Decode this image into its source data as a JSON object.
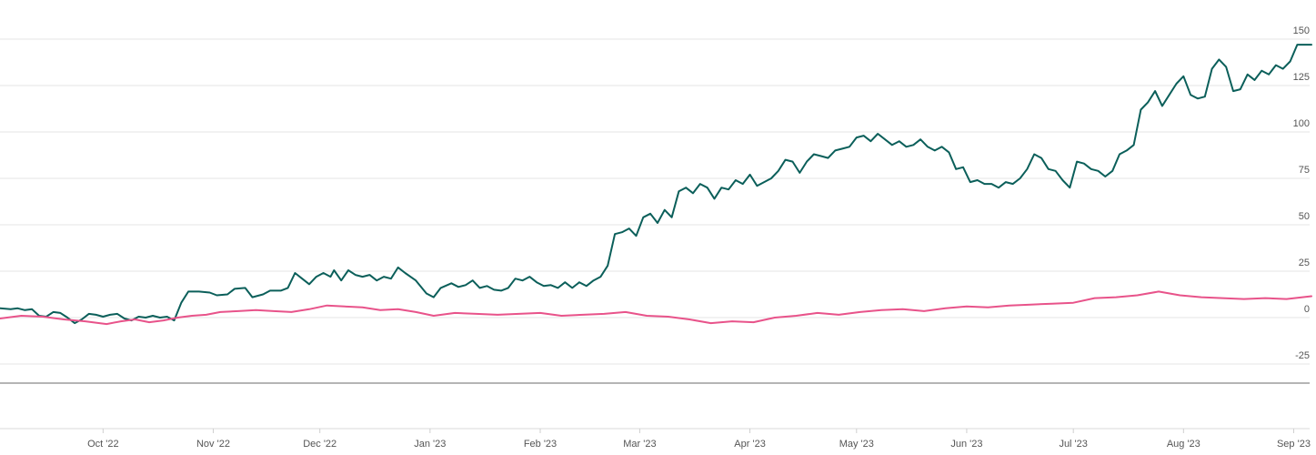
{
  "chart_data": {
    "type": "line",
    "title": "",
    "xlabel": "",
    "ylabel": "",
    "ylim": [
      -30,
      160
    ],
    "y_ticks": [
      -25,
      0,
      25,
      50,
      75,
      100,
      125,
      150
    ],
    "grid": true,
    "legend": "none",
    "x_ticks": [
      {
        "label": "Oct '22",
        "date": "2022-10-01"
      },
      {
        "label": "Nov '22",
        "date": "2022-11-01"
      },
      {
        "label": "Dec '22",
        "date": "2022-12-01"
      },
      {
        "label": "Jan '23",
        "date": "2023-01-01"
      },
      {
        "label": "Feb '23",
        "date": "2023-02-01"
      },
      {
        "label": "Mar '23",
        "date": "2023-03-01"
      },
      {
        "label": "Apr '23",
        "date": "2023-04-01"
      },
      {
        "label": "May '23",
        "date": "2023-05-01"
      },
      {
        "label": "Jun '23",
        "date": "2023-06-01"
      },
      {
        "label": "Jul '23",
        "date": "2023-07-01"
      },
      {
        "label": "Aug '23",
        "date": "2023-08-01"
      },
      {
        "label": "Sep '23",
        "date": "2023-09-01"
      }
    ],
    "xlim": [
      "2022-09-02",
      "2023-09-06"
    ],
    "series": [
      {
        "color": "#0b5f5a",
        "points": [
          [
            "2022-09-02",
            5
          ],
          [
            "2022-09-05",
            4.5
          ],
          [
            "2022-09-07",
            5
          ],
          [
            "2022-09-09",
            4
          ],
          [
            "2022-09-11",
            4.5
          ],
          [
            "2022-09-13",
            1
          ],
          [
            "2022-09-15",
            0.5
          ],
          [
            "2022-09-17",
            3
          ],
          [
            "2022-09-19",
            2.5
          ],
          [
            "2022-09-21",
            0
          ],
          [
            "2022-09-23",
            -3
          ],
          [
            "2022-09-25",
            -1
          ],
          [
            "2022-09-27",
            2
          ],
          [
            "2022-09-29",
            1.5
          ],
          [
            "2022-10-01",
            0.5
          ],
          [
            "2022-10-03",
            1.5
          ],
          [
            "2022-10-05",
            2
          ],
          [
            "2022-10-07",
            -0.5
          ],
          [
            "2022-10-09",
            -1.5
          ],
          [
            "2022-10-11",
            0.5
          ],
          [
            "2022-10-13",
            0
          ],
          [
            "2022-10-15",
            1
          ],
          [
            "2022-10-17",
            0
          ],
          [
            "2022-10-19",
            0.5
          ],
          [
            "2022-10-21",
            -1.5
          ],
          [
            "2022-10-23",
            8
          ],
          [
            "2022-10-25",
            14
          ],
          [
            "2022-10-28",
            14
          ],
          [
            "2022-10-31",
            13.5
          ],
          [
            "2022-11-02",
            12
          ],
          [
            "2022-11-05",
            12.5
          ],
          [
            "2022-11-07",
            15.5
          ],
          [
            "2022-11-10",
            16
          ],
          [
            "2022-11-12",
            11
          ],
          [
            "2022-11-15",
            12.5
          ],
          [
            "2022-11-17",
            14.5
          ],
          [
            "2022-11-20",
            14.5
          ],
          [
            "2022-11-22",
            16
          ],
          [
            "2022-11-24",
            24
          ],
          [
            "2022-11-26",
            21
          ],
          [
            "2022-11-28",
            18
          ],
          [
            "2022-11-30",
            22
          ],
          [
            "2022-12-02",
            24
          ],
          [
            "2022-12-04",
            22
          ],
          [
            "2022-12-05",
            25.5
          ],
          [
            "2022-12-07",
            20
          ],
          [
            "2022-12-09",
            25.5
          ],
          [
            "2022-12-11",
            23
          ],
          [
            "2022-12-13",
            22
          ],
          [
            "2022-12-15",
            23
          ],
          [
            "2022-12-17",
            20
          ],
          [
            "2022-12-19",
            22
          ],
          [
            "2022-12-21",
            21
          ],
          [
            "2022-12-23",
            27
          ],
          [
            "2022-12-25",
            24
          ],
          [
            "2022-12-28",
            20
          ],
          [
            "2022-12-31",
            13
          ],
          [
            "2023-01-02",
            11
          ],
          [
            "2023-01-04",
            16
          ],
          [
            "2023-01-07",
            18.5
          ],
          [
            "2023-01-09",
            16.5
          ],
          [
            "2023-01-11",
            17.5
          ],
          [
            "2023-01-13",
            20
          ],
          [
            "2023-01-15",
            16
          ],
          [
            "2023-01-17",
            17
          ],
          [
            "2023-01-19",
            15
          ],
          [
            "2023-01-21",
            14.5
          ],
          [
            "2023-01-23",
            16
          ],
          [
            "2023-01-25",
            21
          ],
          [
            "2023-01-27",
            20
          ],
          [
            "2023-01-29",
            22
          ],
          [
            "2023-01-31",
            19
          ],
          [
            "2023-02-02",
            17
          ],
          [
            "2023-02-04",
            17.5
          ],
          [
            "2023-02-06",
            16
          ],
          [
            "2023-02-08",
            19
          ],
          [
            "2023-02-10",
            16
          ],
          [
            "2023-02-12",
            19
          ],
          [
            "2023-02-14",
            17
          ],
          [
            "2023-02-16",
            20
          ],
          [
            "2023-02-18",
            22
          ],
          [
            "2023-02-20",
            28
          ],
          [
            "2023-02-22",
            45
          ],
          [
            "2023-02-24",
            46
          ],
          [
            "2023-02-26",
            48
          ],
          [
            "2023-02-28",
            44
          ],
          [
            "2023-03-02",
            54
          ],
          [
            "2023-03-04",
            56
          ],
          [
            "2023-03-06",
            51
          ],
          [
            "2023-03-08",
            58
          ],
          [
            "2023-03-10",
            54
          ],
          [
            "2023-03-12",
            68
          ],
          [
            "2023-03-14",
            70
          ],
          [
            "2023-03-16",
            67
          ],
          [
            "2023-03-18",
            72
          ],
          [
            "2023-03-20",
            70
          ],
          [
            "2023-03-22",
            64
          ],
          [
            "2023-03-24",
            70
          ],
          [
            "2023-03-26",
            69
          ],
          [
            "2023-03-28",
            74
          ],
          [
            "2023-03-30",
            72
          ],
          [
            "2023-04-01",
            77
          ],
          [
            "2023-04-03",
            71
          ],
          [
            "2023-04-05",
            73
          ],
          [
            "2023-04-07",
            75
          ],
          [
            "2023-04-09",
            79
          ],
          [
            "2023-04-11",
            85
          ],
          [
            "2023-04-13",
            84
          ],
          [
            "2023-04-15",
            78
          ],
          [
            "2023-04-17",
            84
          ],
          [
            "2023-04-19",
            88
          ],
          [
            "2023-04-21",
            87
          ],
          [
            "2023-04-23",
            86
          ],
          [
            "2023-04-25",
            90
          ],
          [
            "2023-04-27",
            91
          ],
          [
            "2023-04-29",
            92
          ],
          [
            "2023-05-01",
            97
          ],
          [
            "2023-05-03",
            98
          ],
          [
            "2023-05-05",
            95
          ],
          [
            "2023-05-07",
            99
          ],
          [
            "2023-05-09",
            96
          ],
          [
            "2023-05-11",
            93
          ],
          [
            "2023-05-13",
            95
          ],
          [
            "2023-05-15",
            92
          ],
          [
            "2023-05-17",
            93
          ],
          [
            "2023-05-19",
            96
          ],
          [
            "2023-05-21",
            92
          ],
          [
            "2023-05-23",
            90
          ],
          [
            "2023-05-25",
            92
          ],
          [
            "2023-05-27",
            89
          ],
          [
            "2023-05-29",
            80
          ],
          [
            "2023-05-31",
            81
          ],
          [
            "2023-06-02",
            73
          ],
          [
            "2023-06-04",
            74
          ],
          [
            "2023-06-06",
            72
          ],
          [
            "2023-06-08",
            72
          ],
          [
            "2023-06-10",
            70
          ],
          [
            "2023-06-12",
            73
          ],
          [
            "2023-06-14",
            72
          ],
          [
            "2023-06-16",
            75
          ],
          [
            "2023-06-18",
            80
          ],
          [
            "2023-06-20",
            88
          ],
          [
            "2023-06-22",
            86
          ],
          [
            "2023-06-24",
            80
          ],
          [
            "2023-06-26",
            79
          ],
          [
            "2023-06-28",
            74
          ],
          [
            "2023-06-30",
            70
          ],
          [
            "2023-07-02",
            84
          ],
          [
            "2023-07-04",
            83
          ],
          [
            "2023-07-06",
            80
          ],
          [
            "2023-07-08",
            79
          ],
          [
            "2023-07-10",
            76
          ],
          [
            "2023-07-12",
            79
          ],
          [
            "2023-07-14",
            88
          ],
          [
            "2023-07-16",
            90
          ],
          [
            "2023-07-18",
            93
          ],
          [
            "2023-07-20",
            112
          ],
          [
            "2023-07-22",
            116
          ],
          [
            "2023-07-24",
            122
          ],
          [
            "2023-07-26",
            114
          ],
          [
            "2023-07-28",
            120
          ],
          [
            "2023-07-30",
            126
          ],
          [
            "2023-08-01",
            130
          ],
          [
            "2023-08-03",
            120
          ],
          [
            "2023-08-05",
            118
          ],
          [
            "2023-08-07",
            119
          ],
          [
            "2023-08-09",
            134
          ],
          [
            "2023-08-11",
            139
          ],
          [
            "2023-08-13",
            135
          ],
          [
            "2023-08-15",
            122
          ],
          [
            "2023-08-17",
            123
          ],
          [
            "2023-08-19",
            131
          ],
          [
            "2023-08-21",
            128
          ],
          [
            "2023-08-23",
            133
          ],
          [
            "2023-08-25",
            131
          ],
          [
            "2023-08-27",
            136
          ],
          [
            "2023-08-29",
            134
          ],
          [
            "2023-08-31",
            138
          ],
          [
            "2023-09-02",
            147
          ],
          [
            "2023-09-06",
            147
          ]
        ]
      },
      {
        "color": "#e8538a",
        "points": [
          [
            "2022-09-02",
            -0.5
          ],
          [
            "2022-09-08",
            1
          ],
          [
            "2022-09-14",
            0.5
          ],
          [
            "2022-09-20",
            -1
          ],
          [
            "2022-09-26",
            -2
          ],
          [
            "2022-10-02",
            -3.5
          ],
          [
            "2022-10-06",
            -2
          ],
          [
            "2022-10-10",
            -1
          ],
          [
            "2022-10-14",
            -2.5
          ],
          [
            "2022-10-18",
            -1.5
          ],
          [
            "2022-10-22",
            0
          ],
          [
            "2022-10-26",
            1
          ],
          [
            "2022-10-30",
            1.5
          ],
          [
            "2022-11-03",
            3
          ],
          [
            "2022-11-08",
            3.5
          ],
          [
            "2022-11-13",
            4
          ],
          [
            "2022-11-18",
            3.5
          ],
          [
            "2022-11-23",
            3
          ],
          [
            "2022-11-28",
            4.5
          ],
          [
            "2022-12-03",
            6.5
          ],
          [
            "2022-12-08",
            6
          ],
          [
            "2022-12-13",
            5.5
          ],
          [
            "2022-12-18",
            4
          ],
          [
            "2022-12-23",
            4.5
          ],
          [
            "2022-12-28",
            3
          ],
          [
            "2023-01-02",
            1
          ],
          [
            "2023-01-08",
            2.5
          ],
          [
            "2023-01-14",
            2
          ],
          [
            "2023-01-20",
            1.5
          ],
          [
            "2023-01-26",
            2
          ],
          [
            "2023-02-01",
            2.5
          ],
          [
            "2023-02-07",
            1
          ],
          [
            "2023-02-13",
            1.5
          ],
          [
            "2023-02-19",
            2
          ],
          [
            "2023-02-25",
            3
          ],
          [
            "2023-03-03",
            1
          ],
          [
            "2023-03-09",
            0.5
          ],
          [
            "2023-03-15",
            -1
          ],
          [
            "2023-03-21",
            -3
          ],
          [
            "2023-03-27",
            -2
          ],
          [
            "2023-04-02",
            -2.5
          ],
          [
            "2023-04-08",
            0
          ],
          [
            "2023-04-14",
            1
          ],
          [
            "2023-04-20",
            2.5
          ],
          [
            "2023-04-26",
            1.5
          ],
          [
            "2023-05-02",
            3
          ],
          [
            "2023-05-08",
            4
          ],
          [
            "2023-05-14",
            4.5
          ],
          [
            "2023-05-20",
            3.5
          ],
          [
            "2023-05-26",
            5
          ],
          [
            "2023-06-01",
            6
          ],
          [
            "2023-06-07",
            5.5
          ],
          [
            "2023-06-13",
            6.5
          ],
          [
            "2023-06-19",
            7
          ],
          [
            "2023-06-25",
            7.5
          ],
          [
            "2023-07-01",
            8
          ],
          [
            "2023-07-07",
            10.5
          ],
          [
            "2023-07-13",
            11
          ],
          [
            "2023-07-19",
            12
          ],
          [
            "2023-07-25",
            14
          ],
          [
            "2023-07-31",
            12
          ],
          [
            "2023-08-06",
            11
          ],
          [
            "2023-08-12",
            10.5
          ],
          [
            "2023-08-18",
            10
          ],
          [
            "2023-08-24",
            10.5
          ],
          [
            "2023-08-30",
            10
          ],
          [
            "2023-09-06",
            11.5
          ]
        ]
      }
    ]
  }
}
